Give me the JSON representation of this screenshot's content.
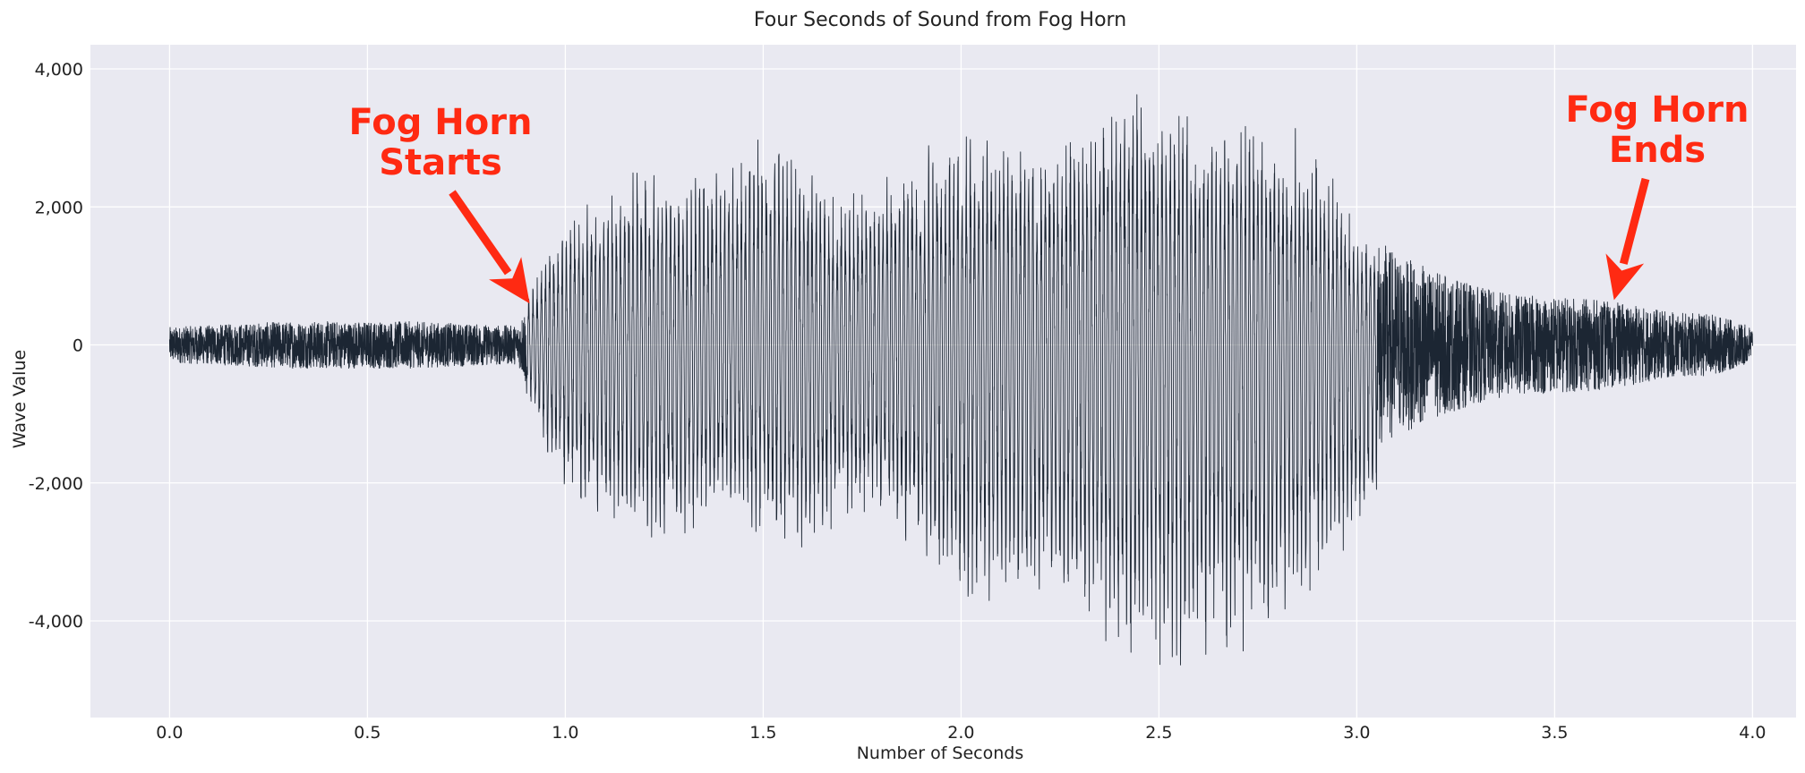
{
  "chart_data": {
    "type": "line",
    "title": "Four Seconds of Sound from Fog Horn",
    "xlabel": "Number of Seconds",
    "ylabel": "Wave Value",
    "xlim": [
      -0.2,
      4.11
    ],
    "ylim": [
      -5400,
      4350
    ],
    "xticks": [
      0.0,
      0.5,
      1.0,
      1.5,
      2.0,
      2.5,
      3.0,
      3.5,
      4.0
    ],
    "xtick_labels": [
      "0.0",
      "0.5",
      "1.0",
      "1.5",
      "2.0",
      "2.5",
      "3.0",
      "3.5",
      "4.0"
    ],
    "yticks": [
      4000,
      2000,
      0,
      -2000,
      -4000
    ],
    "ytick_labels": [
      "4,000",
      "2,000",
      "0",
      "-2,000",
      "-4,000"
    ],
    "grid": true,
    "series": [
      {
        "color": "#1c2633",
        "duration_seconds": 4.0,
        "envelope": {
          "t": [
            0.0,
            0.3,
            0.6,
            0.88,
            0.9,
            0.95,
            1.0,
            1.1,
            1.2,
            1.3,
            1.4,
            1.5,
            1.6,
            1.7,
            1.8,
            1.9,
            2.0,
            2.1,
            2.2,
            2.3,
            2.4,
            2.5,
            2.6,
            2.7,
            2.8,
            2.9,
            3.0,
            3.1,
            3.2,
            3.3,
            3.4,
            3.5,
            3.6,
            3.7,
            3.8,
            3.9,
            4.0
          ],
          "max": [
            300,
            350,
            450,
            350,
            650,
            1200,
            1600,
            2100,
            2400,
            2200,
            2500,
            2800,
            2600,
            2000,
            2300,
            2700,
            2900,
            2800,
            2600,
            2900,
            3700,
            3400,
            3000,
            3100,
            2900,
            2600,
            1600,
            1300,
            1000,
            800,
            700,
            750,
            700,
            600,
            500,
            550,
            300
          ],
          "min": [
            -300,
            -450,
            -350,
            -300,
            -700,
            -1500,
            -2000,
            -2300,
            -2900,
            -2700,
            -2200,
            -2800,
            -2900,
            -2400,
            -2500,
            -2900,
            -3600,
            -3500,
            -3700,
            -3900,
            -4100,
            -4700,
            -4400,
            -4300,
            -3900,
            -3300,
            -2700,
            -1800,
            -1500,
            -1200,
            -1000,
            -900,
            -850,
            -750,
            -600,
            -500,
            -300
          ]
        }
      }
    ],
    "annotations": [
      {
        "text_lines": [
          "Fog Horn",
          "Starts"
        ],
        "x": 0.91,
        "y": 600,
        "color": "#ff2a12"
      },
      {
        "text_lines": [
          "Fog Horn",
          "Ends"
        ],
        "x": 3.65,
        "y": 650,
        "color": "#ff2a12"
      }
    ],
    "style": {
      "background": "#e9e9f1",
      "grid_color": "#ffffff"
    }
  }
}
